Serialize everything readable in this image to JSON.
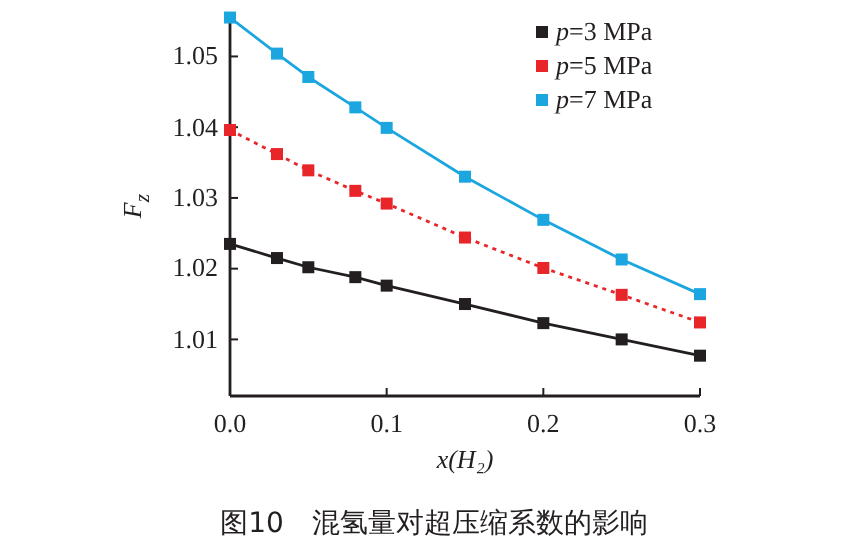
{
  "chart_data": {
    "type": "line",
    "xlabel": "x(H₂)",
    "ylabel": "F$_{z}$",
    "x": [
      0,
      0.03,
      0.05,
      0.08,
      0.1,
      0.15,
      0.2,
      0.25,
      0.3
    ],
    "series": [
      {
        "name": "p=3 MPa",
        "color": "#231f20",
        "line_style": "solid",
        "values": [
          1.0235,
          1.0215,
          1.0202,
          1.0188,
          1.0176,
          1.015,
          1.0123,
          1.01,
          1.0077
        ]
      },
      {
        "name": "p=5 MPa",
        "color": "#e8262a",
        "line_style": "dotted",
        "values": [
          1.0396,
          1.0362,
          1.0339,
          1.031,
          1.0292,
          1.0244,
          1.0201,
          1.0163,
          1.0124
        ]
      },
      {
        "name": "p=7 MPa",
        "color": "#1ba6e0",
        "line_style": "solid",
        "values": [
          1.0555,
          1.0504,
          1.0471,
          1.0428,
          1.0399,
          1.033,
          1.0269,
          1.0213,
          1.0164
        ]
      }
    ],
    "marker": "square",
    "legend": "top right",
    "xlim": [
      0,
      0.3
    ],
    "xticks": [
      {
        "value": 0,
        "label": "0.0"
      },
      0.1,
      0.2,
      0.3
    ],
    "ylim": [
      1.002,
      1.056
    ],
    "yticks": [
      1.01,
      1.02,
      1.03,
      1.04,
      1.05
    ],
    "annotations": [
      "图10　混氢量对超压缩系数的影响"
    ]
  }
}
